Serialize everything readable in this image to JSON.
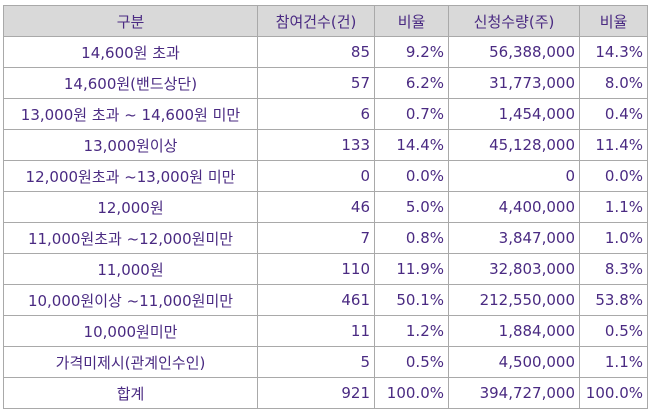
{
  "table": {
    "headers": [
      "구분",
      "참여건수(건)",
      "비율",
      "신청수량(주)",
      "비율"
    ],
    "rows": [
      [
        "14,600원 초과",
        "85",
        "9.2%",
        "56,388,000",
        "14.3%"
      ],
      [
        "14,600원(밴드상단)",
        "57",
        "6.2%",
        "31,773,000",
        "8.0%"
      ],
      [
        "13,000원 초과 ~ 14,600원 미만",
        "6",
        "0.7%",
        "1,454,000",
        "0.4%"
      ],
      [
        "13,000원이상",
        "133",
        "14.4%",
        "45,128,000",
        "11.4%"
      ],
      [
        "12,000원초과 ~13,000원 미만",
        "0",
        "0.0%",
        "0",
        "0.0%"
      ],
      [
        "12,000원",
        "46",
        "5.0%",
        "4,400,000",
        "1.1%"
      ],
      [
        "11,000원초과 ~12,000원미만",
        "7",
        "0.8%",
        "3,847,000",
        "1.0%"
      ],
      [
        "11,000원",
        "110",
        "11.9%",
        "32,803,000",
        "8.3%"
      ],
      [
        "10,000원이상 ~11,000원미만",
        "461",
        "50.1%",
        "212,550,000",
        "53.8%"
      ],
      [
        "10,000원미만",
        "11",
        "1.2%",
        "1,884,000",
        "0.5%"
      ],
      [
        "가격미제시(관계인수인)",
        "5",
        "0.5%",
        "4,500,000",
        "1.1%"
      ],
      [
        "합계",
        "921",
        "100.0%",
        "394,727,000",
        "100.0%"
      ]
    ]
  },
  "colors": {
    "text": "#4a2a82",
    "header_bg": "#d9d9d9",
    "border": "#a9a9a9"
  }
}
